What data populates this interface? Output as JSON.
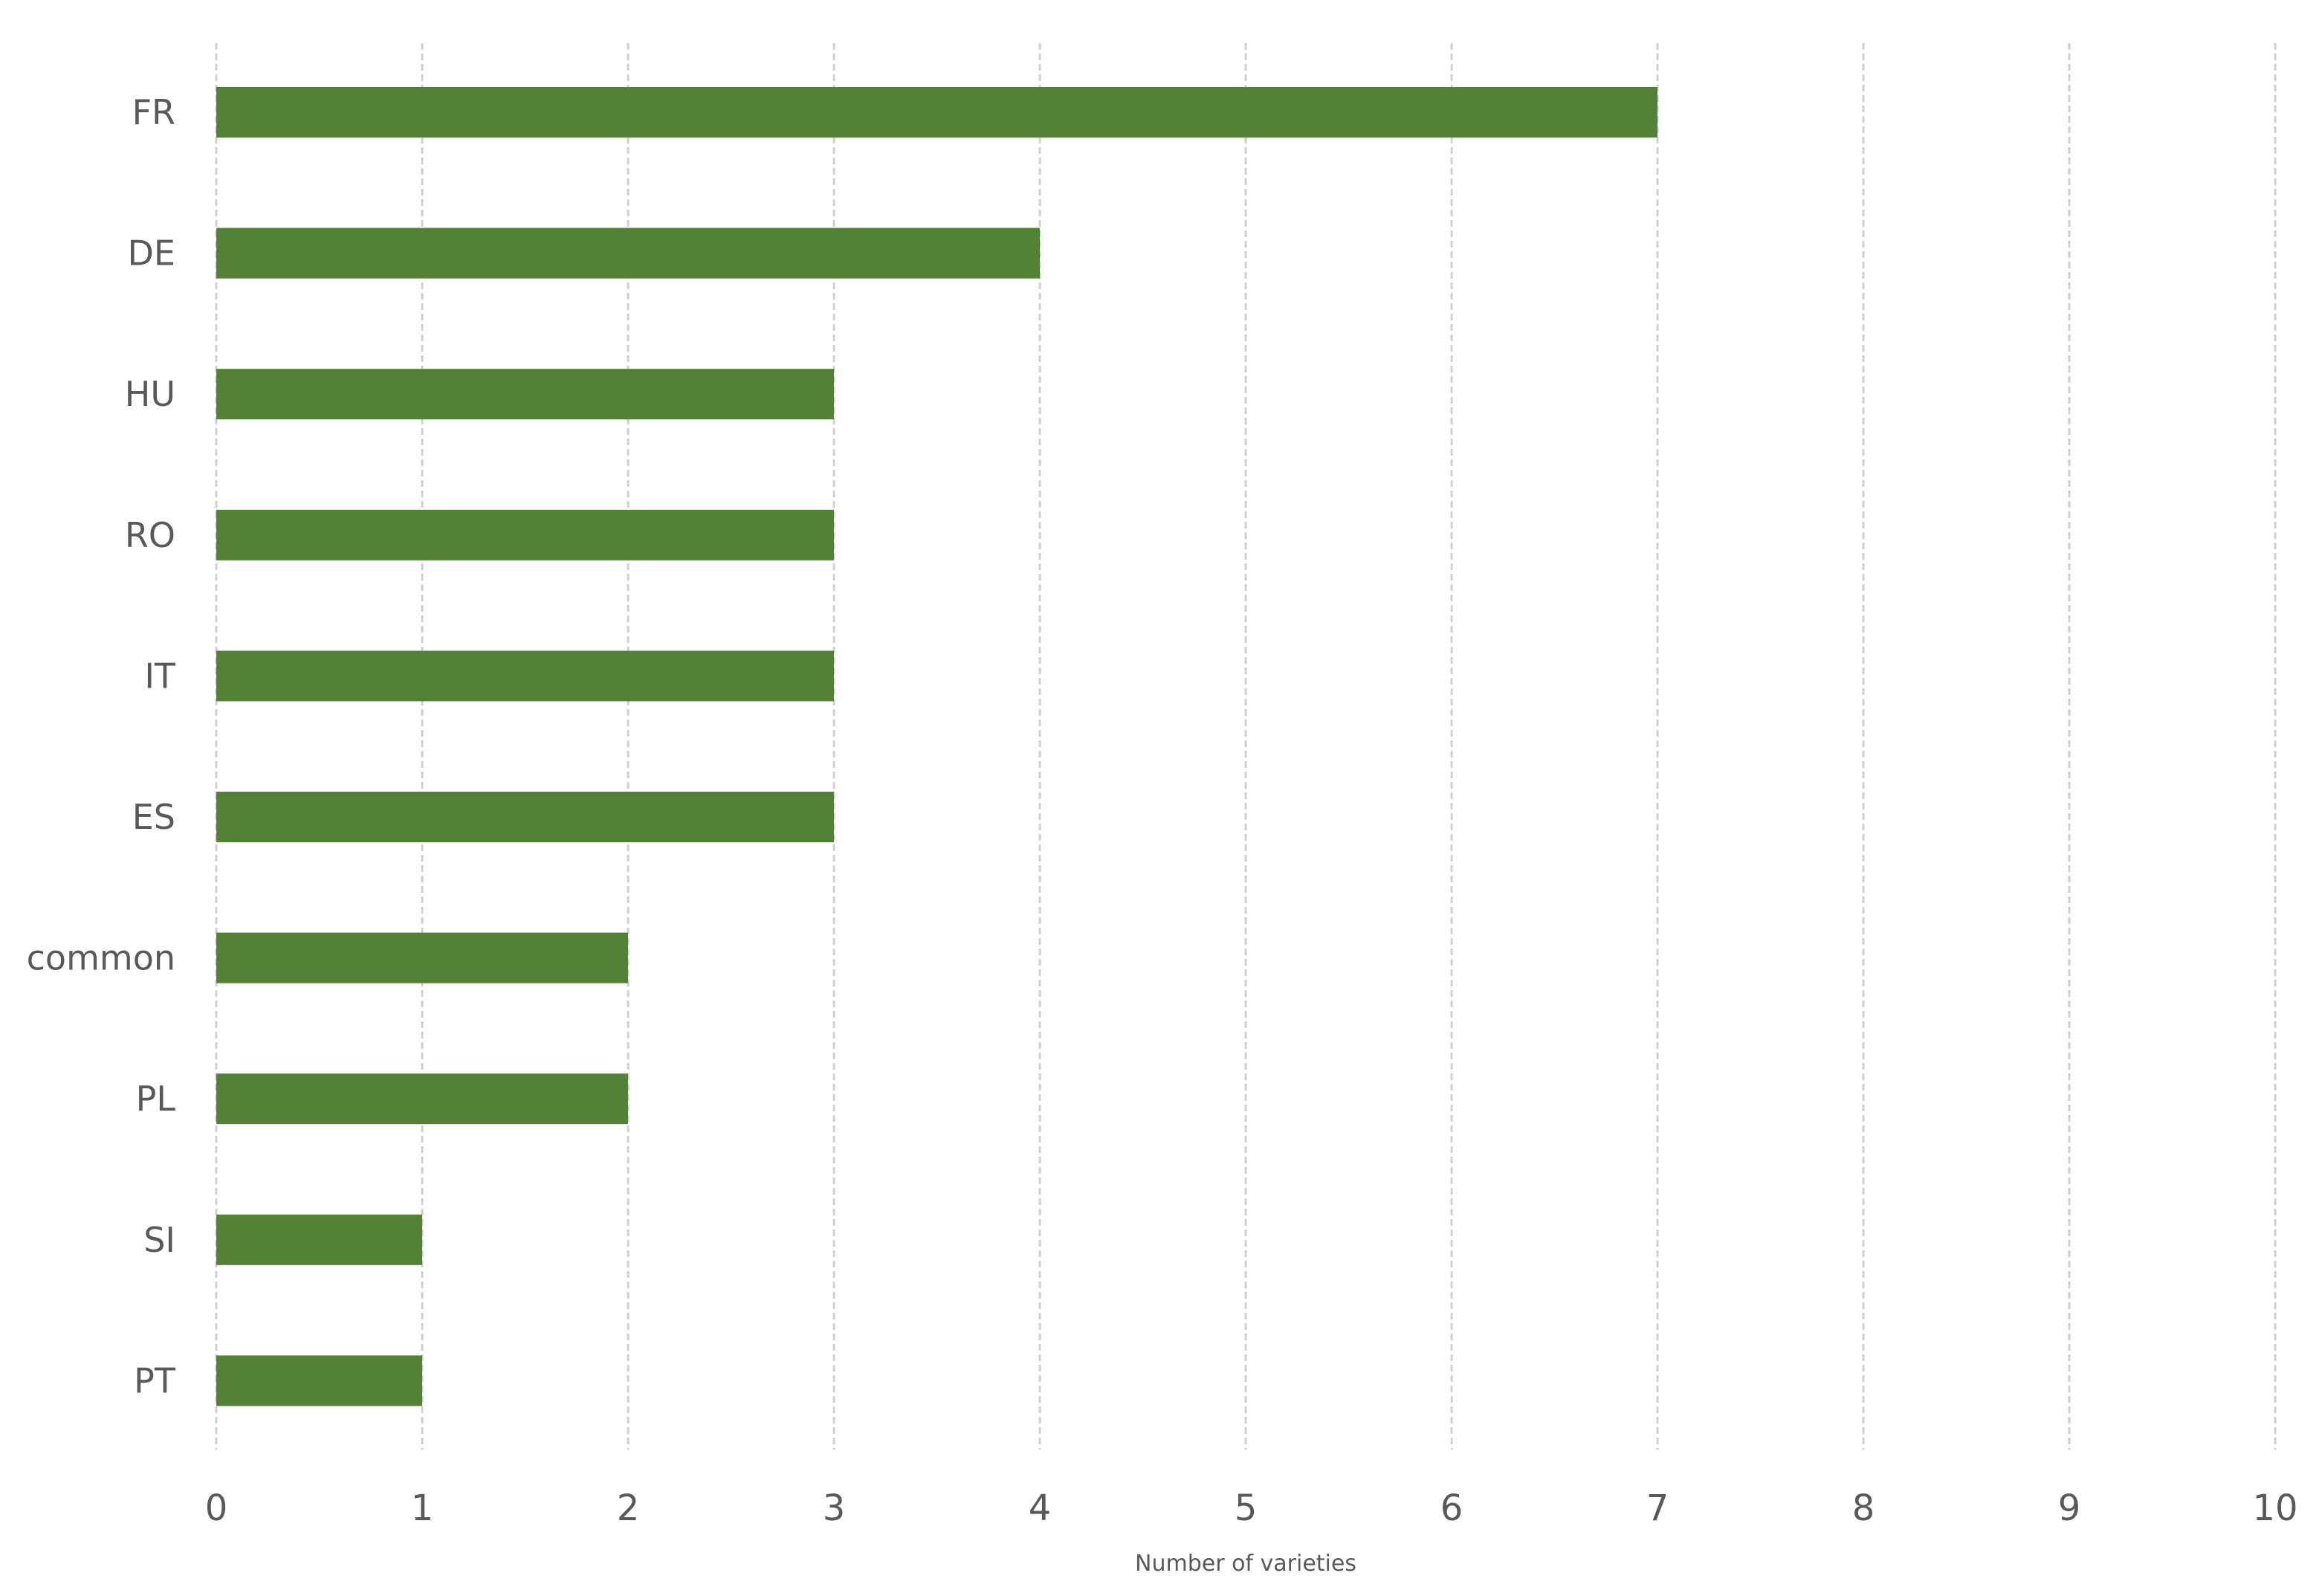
{
  "chart_data": {
    "type": "bar",
    "orientation": "horizontal",
    "title": "",
    "xlabel": "Number of varieties",
    "ylabel": "",
    "categories": [
      "FR",
      "DE",
      "HU",
      "RO",
      "IT",
      "ES",
      "common",
      "PL",
      "SI",
      "PT"
    ],
    "values": [
      7,
      4,
      3,
      3,
      3,
      3,
      2,
      2,
      1,
      1
    ],
    "xlim": [
      0,
      10
    ],
    "xticks": [
      0,
      1,
      2,
      3,
      4,
      5,
      6,
      7,
      8,
      9,
      10
    ],
    "grid": "vertical dashed",
    "legend": "none",
    "colors": {
      "bar": "#538135",
      "grid": "#d0d0d0",
      "text": "#595959"
    }
  }
}
